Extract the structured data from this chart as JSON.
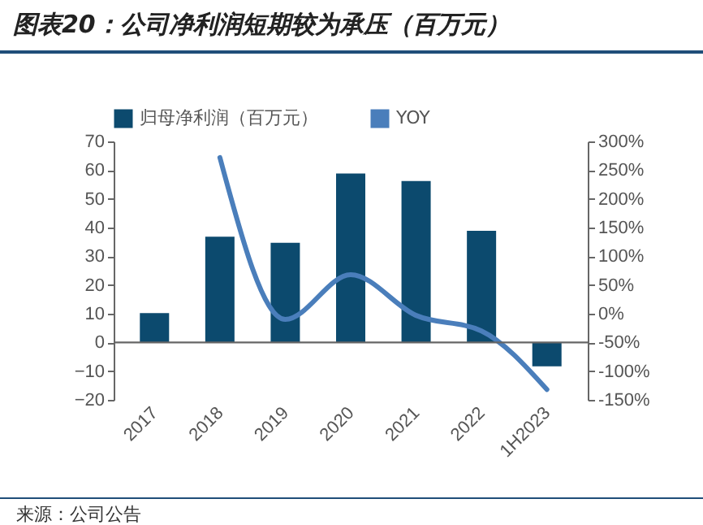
{
  "chart_data": {
    "type": "bar",
    "title": "图表20：公司净利润短期较为承压（百万元）",
    "categories": [
      "2017",
      "2018",
      "2019",
      "2020",
      "2021",
      "2022",
      "1H2023"
    ],
    "series": [
      {
        "name": "归母净利润（百万元）",
        "color": "#0c4a6e",
        "values": [
          10.2,
          36.8,
          34.7,
          58.8,
          56.2,
          38.9,
          -8.3
        ]
      },
      {
        "name": "YOY",
        "type": "line",
        "axis": "y2",
        "color": "#4a7ebb",
        "values": [
          null,
          272,
          -10,
          68,
          -3,
          -30,
          -132
        ]
      }
    ],
    "ylim": [
      -20,
      70
    ],
    "yticks": [
      -20,
      -10,
      0,
      10,
      20,
      30,
      40,
      50,
      60,
      70
    ],
    "y2lim": [
      -150,
      300
    ],
    "y2ticks": [
      {
        "value": -150,
        "label": "-150%"
      },
      {
        "value": -100,
        "label": "-100%"
      },
      {
        "value": -50,
        "label": "-50%"
      },
      {
        "value": 0,
        "label": "0%"
      },
      {
        "value": 50,
        "label": "50%"
      },
      {
        "value": 100,
        "label": "100%"
      },
      {
        "value": 150,
        "label": "150%"
      },
      {
        "value": 200,
        "label": "200%"
      },
      {
        "value": 250,
        "label": "250%"
      },
      {
        "value": 300,
        "label": "300%"
      }
    ],
    "legend": "top",
    "ref_lines": [
      {
        "axis": "y",
        "value": 0,
        "color": "#666666"
      }
    ],
    "annotations": [
      "来源：公司公告"
    ]
  }
}
